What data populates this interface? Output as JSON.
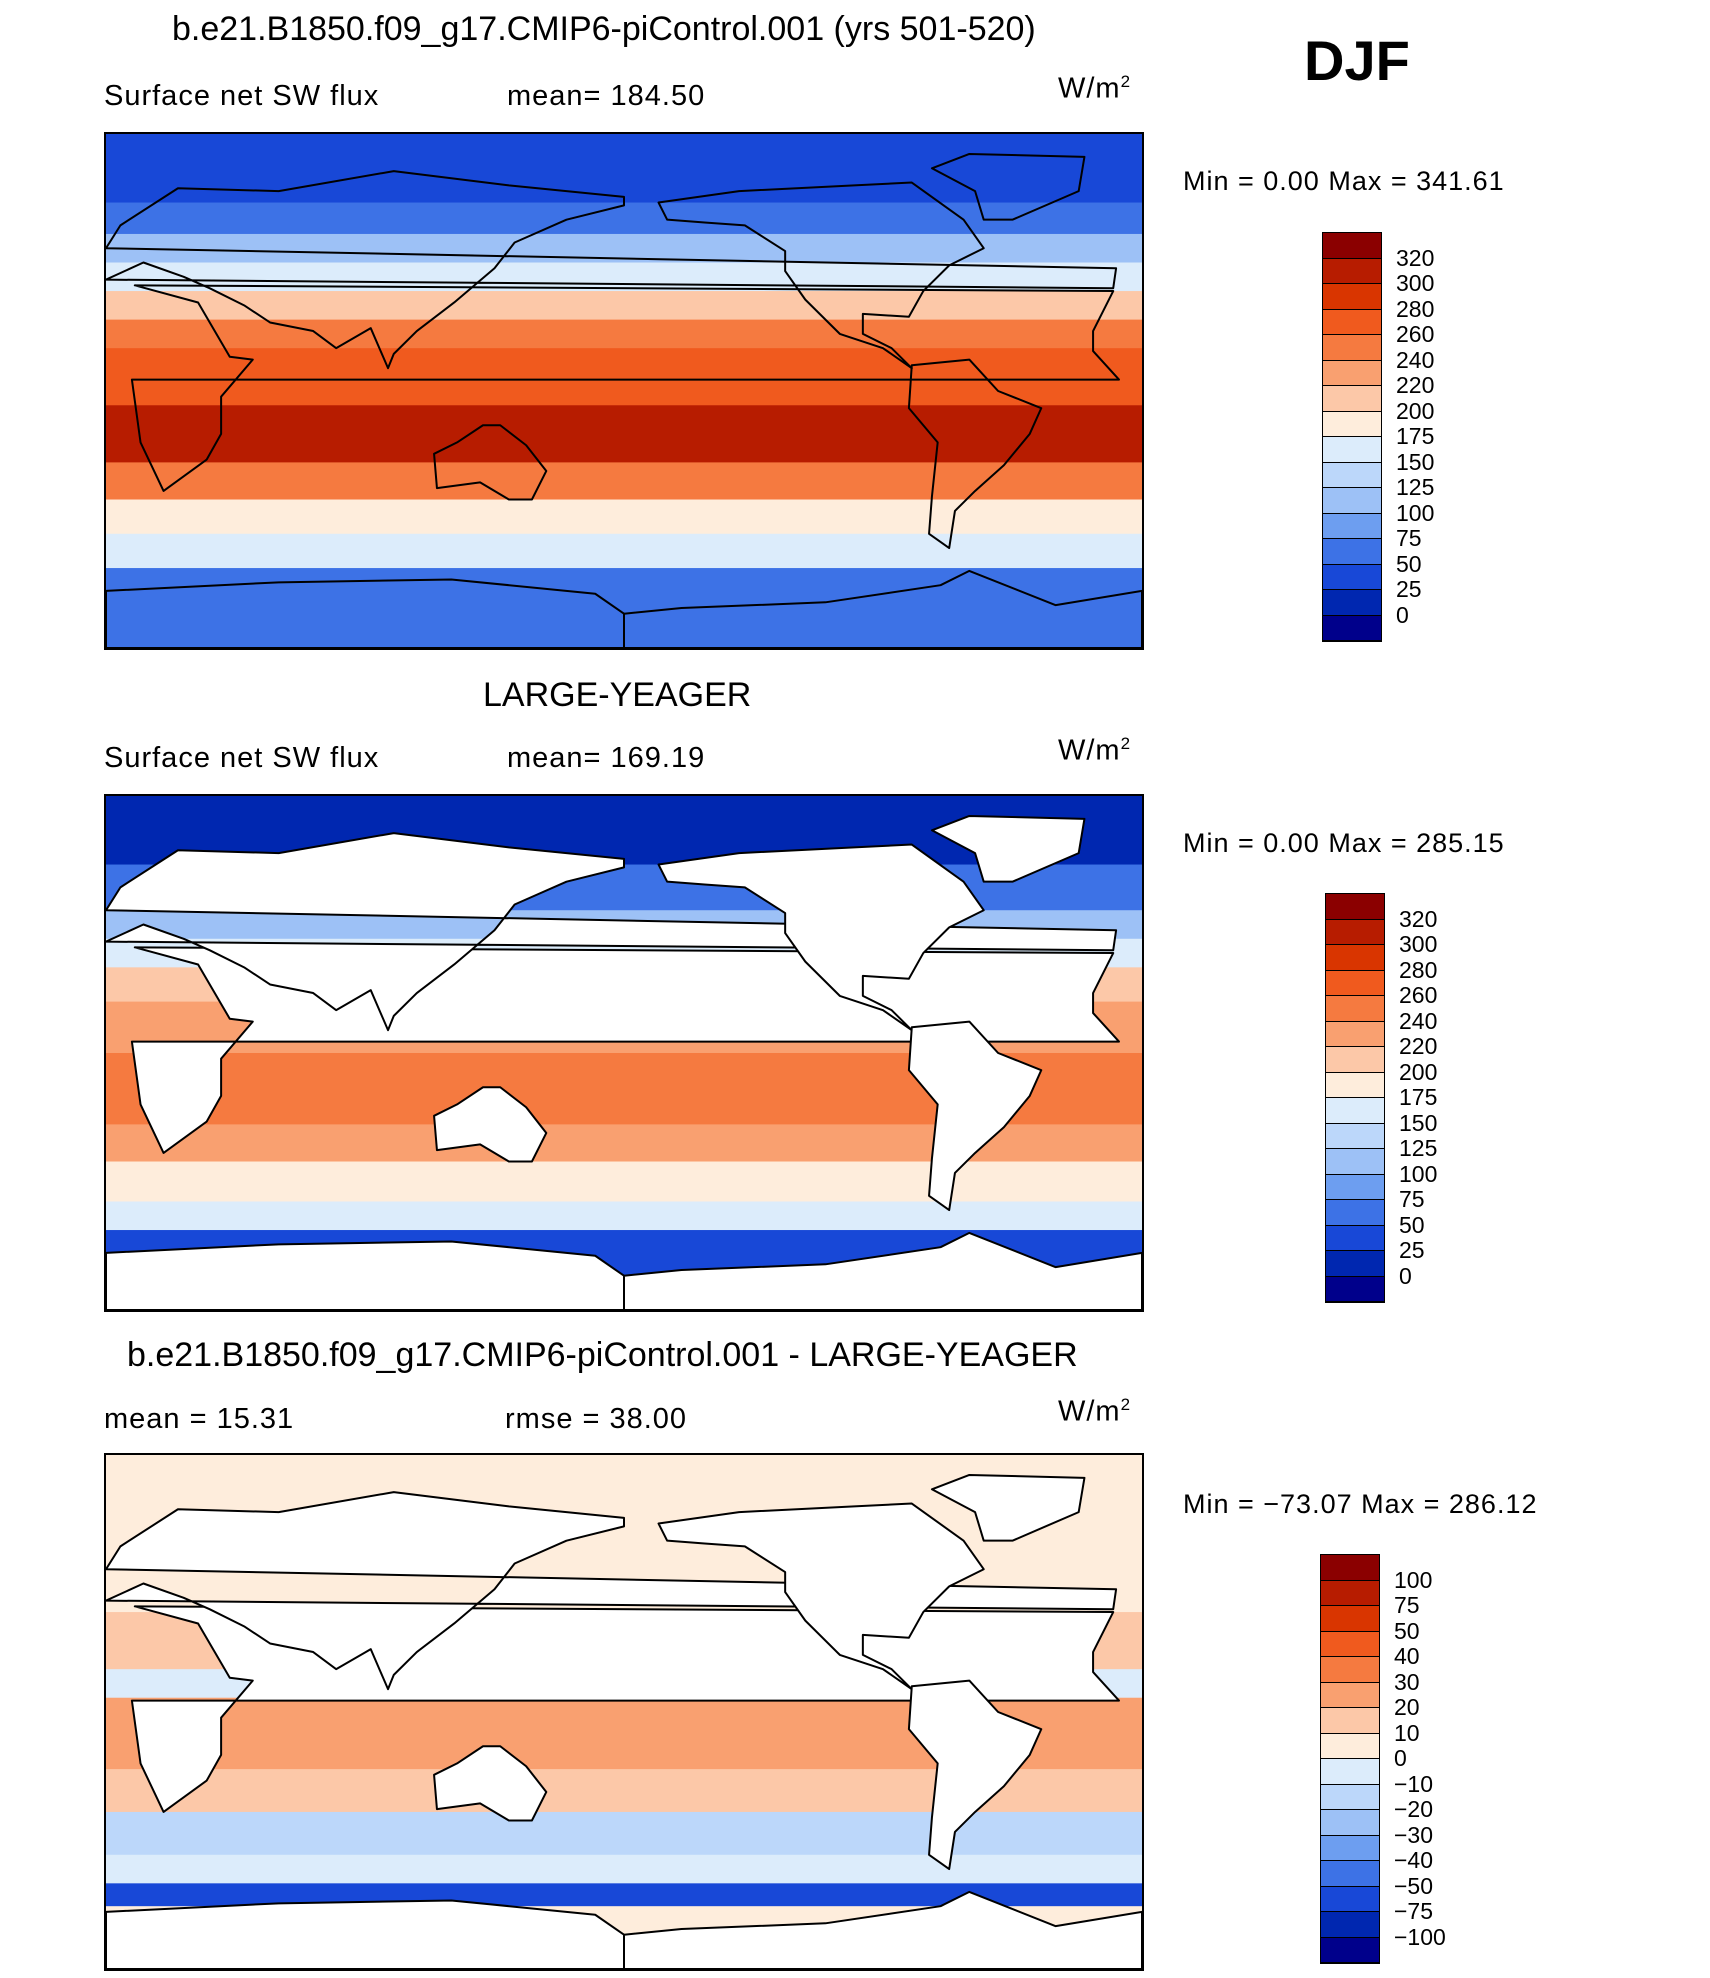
{
  "season": "DJF",
  "panels": [
    {
      "title": "b.e21.B1850.f09_g17.CMIP6-piControl.001 (yrs 501-520)",
      "variable": "Surface net SW flux",
      "stat1": "mean=  184.50",
      "stat2": "",
      "units": "W/m",
      "units_exp": "2",
      "minmax": "Min  =     0.00  Max  =  341.61",
      "land_masked": false,
      "colorbar": {
        "labels": [
          "320",
          "300",
          "280",
          "260",
          "240",
          "220",
          "200",
          "175",
          "150",
          "125",
          "100",
          "75",
          "50",
          "25",
          "0"
        ],
        "colors": [
          "#8b0000",
          "#b71c00",
          "#d93500",
          "#f05a1e",
          "#f57a40",
          "#f9a070",
          "#fcc8a8",
          "#feeddc",
          "#dcecfb",
          "#bcd7fa",
          "#9dc1f6",
          "#6d9ef0",
          "#3d72e6",
          "#1848d7",
          "#0027b0",
          "#00008b"
        ]
      },
      "map_data": {
        "type": "contour-map",
        "bands": [
          {
            "lat": [
              90,
              66
            ],
            "value": 25
          },
          {
            "lat": [
              66,
              55
            ],
            "value": 60
          },
          {
            "lat": [
              55,
              45
            ],
            "value": 110
          },
          {
            "lat": [
              45,
              35
            ],
            "value": 165
          },
          {
            "lat": [
              35,
              25
            ],
            "value": 210
          },
          {
            "lat": [
              25,
              15
            ],
            "value": 240
          },
          {
            "lat": [
              15,
              -5
            ],
            "value": 270
          },
          {
            "lat": [
              -5,
              -25
            ],
            "value": 300
          },
          {
            "lat": [
              -25,
              -38
            ],
            "value": 250
          },
          {
            "lat": [
              -38,
              -50
            ],
            "value": 190
          },
          {
            "lat": [
              -50,
              -62
            ],
            "value": 160
          },
          {
            "lat": [
              -62,
              -90
            ],
            "value": 60
          }
        ]
      }
    },
    {
      "title": "LARGE-YEAGER",
      "variable": "Surface net SW flux",
      "stat1": "mean=  169.19",
      "stat2": "",
      "units": "W/m",
      "units_exp": "2",
      "minmax": "Min  =     0.00  Max  =  285.15",
      "land_masked": true,
      "colorbar": {
        "labels": [
          "320",
          "300",
          "280",
          "260",
          "240",
          "220",
          "200",
          "175",
          "150",
          "125",
          "100",
          "75",
          "50",
          "25",
          "0"
        ],
        "colors": [
          "#8b0000",
          "#b71c00",
          "#d93500",
          "#f05a1e",
          "#f57a40",
          "#f9a070",
          "#fcc8a8",
          "#feeddc",
          "#dcecfb",
          "#bcd7fa",
          "#9dc1f6",
          "#6d9ef0",
          "#3d72e6",
          "#1848d7",
          "#0027b0",
          "#00008b"
        ]
      },
      "map_data": {
        "type": "contour-map",
        "bands": [
          {
            "lat": [
              90,
              66
            ],
            "value": 20
          },
          {
            "lat": [
              66,
              50
            ],
            "value": 55
          },
          {
            "lat": [
              50,
              40
            ],
            "value": 100
          },
          {
            "lat": [
              40,
              30
            ],
            "value": 160
          },
          {
            "lat": [
              30,
              18
            ],
            "value": 200
          },
          {
            "lat": [
              18,
              0
            ],
            "value": 225
          },
          {
            "lat": [
              0,
              -25
            ],
            "value": 255
          },
          {
            "lat": [
              -25,
              -38
            ],
            "value": 230
          },
          {
            "lat": [
              -38,
              -52
            ],
            "value": 180
          },
          {
            "lat": [
              -52,
              -62
            ],
            "value": 150
          },
          {
            "lat": [
              -62,
              -90
            ],
            "value": 40
          }
        ]
      }
    },
    {
      "title": "b.e21.B1850.f09_g17.CMIP6-piControl.001 - LARGE-YEAGER",
      "variable": "mean  =     15.31",
      "stat1": "rmse  =     38.00",
      "stat2": "",
      "units": "W/m",
      "units_exp": "2",
      "minmax": "Min  =  −73.07  Max  =  286.12",
      "land_masked": true,
      "colorbar": {
        "labels": [
          "100",
          "75",
          "50",
          "40",
          "30",
          "20",
          "10",
          "0",
          "−10",
          "−20",
          "−30",
          "−40",
          "−50",
          "−75",
          "−100"
        ],
        "colors": [
          "#8b0000",
          "#b71c00",
          "#d93500",
          "#f05a1e",
          "#f57a40",
          "#f9a070",
          "#fcc8a8",
          "#feeddc",
          "#dcecfb",
          "#bcd7fa",
          "#9dc1f6",
          "#6d9ef0",
          "#3d72e6",
          "#1848d7",
          "#0027b0",
          "#00008b"
        ]
      },
      "map_data": {
        "type": "contour-map",
        "bands": [
          {
            "lat": [
              90,
              60
            ],
            "value": 5
          },
          {
            "lat": [
              60,
              35
            ],
            "value": 8
          },
          {
            "lat": [
              35,
              15
            ],
            "value": 12
          },
          {
            "lat": [
              15,
              5
            ],
            "value": -8
          },
          {
            "lat": [
              5,
              -20
            ],
            "value": 25
          },
          {
            "lat": [
              -20,
              -35
            ],
            "value": 15
          },
          {
            "lat": [
              -35,
              -50
            ],
            "value": -15
          },
          {
            "lat": [
              -50,
              -60
            ],
            "value": -10
          },
          {
            "lat": [
              -60,
              -68
            ],
            "value": -60
          },
          {
            "lat": [
              -68,
              -90
            ],
            "value": 0
          }
        ]
      }
    }
  ]
}
